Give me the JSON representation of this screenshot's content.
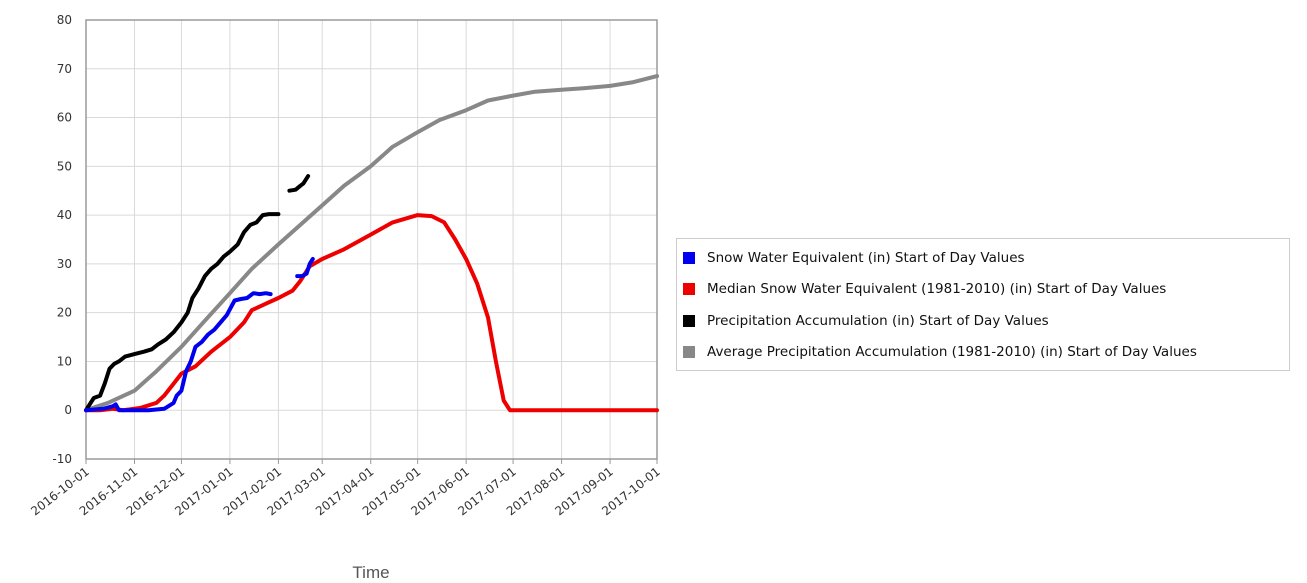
{
  "chart_data": {
    "type": "line",
    "xlabel": "Time",
    "ylabel": "",
    "ylim": [
      -10,
      80
    ],
    "xlim": [
      "2016-10-01",
      "2017-10-01"
    ],
    "y_ticks": [
      "80",
      "70",
      "60",
      "50",
      "40",
      "30",
      "20",
      "10",
      "0",
      "-10"
    ],
    "x_ticks": [
      "2016-10-01",
      "2016-11-01",
      "2016-12-01",
      "2017-01-01",
      "2017-02-01",
      "2017-03-01",
      "2017-04-01",
      "2017-05-01",
      "2017-06-01",
      "2017-07-01",
      "2017-08-01",
      "2017-09-01",
      "2017-10-01"
    ],
    "grid": true,
    "legend_position": "right",
    "series": [
      {
        "name": "Snow Water Equivalent (in) Start of Day Values",
        "color": "#0000ee",
        "segments": [
          [
            [
              "2016-10-01",
              0
            ],
            [
              "2016-10-12",
              0.3
            ],
            [
              "2016-10-18",
              0.8
            ],
            [
              "2016-10-20",
              1.2
            ],
            [
              "2016-10-22",
              0
            ],
            [
              "2016-11-10",
              0
            ],
            [
              "2016-11-20",
              0.3
            ],
            [
              "2016-11-26",
              1.5
            ],
            [
              "2016-11-28",
              3
            ],
            [
              "2016-12-01",
              4
            ],
            [
              "2016-12-04",
              8
            ],
            [
              "2016-12-07",
              10
            ],
            [
              "2016-12-10",
              13
            ],
            [
              "2016-12-14",
              14
            ],
            [
              "2016-12-18",
              15.5
            ],
            [
              "2016-12-22",
              16.5
            ],
            [
              "2016-12-26",
              18
            ],
            [
              "2016-12-30",
              19.5
            ],
            [
              "2017-01-04",
              22.5
            ],
            [
              "2017-01-08",
              22.8
            ],
            [
              "2017-01-12",
              23
            ],
            [
              "2017-01-16",
              24
            ],
            [
              "2017-01-20",
              23.8
            ],
            [
              "2017-01-24",
              24
            ],
            [
              "2017-01-27",
              23.8
            ]
          ],
          [
            [
              "2017-02-13",
              27.5
            ],
            [
              "2017-02-16",
              27.5
            ],
            [
              "2017-02-19",
              28
            ],
            [
              "2017-02-21",
              30
            ],
            [
              "2017-02-23",
              31
            ]
          ]
        ]
      },
      {
        "name": "Median Snow Water Equivalent (1981-2010) (in) Start of Day Values",
        "color": "#ee0000",
        "points": [
          [
            "2016-10-01",
            0
          ],
          [
            "2016-10-10",
            0
          ],
          [
            "2016-10-18",
            0.3
          ],
          [
            "2016-10-25",
            0
          ],
          [
            "2016-11-05",
            0.5
          ],
          [
            "2016-11-15",
            1.5
          ],
          [
            "2016-11-20",
            3
          ],
          [
            "2016-11-25",
            5
          ],
          [
            "2016-12-01",
            7.5
          ],
          [
            "2016-12-10",
            9
          ],
          [
            "2016-12-20",
            12
          ],
          [
            "2017-01-01",
            15
          ],
          [
            "2017-01-10",
            18
          ],
          [
            "2017-01-15",
            20.5
          ],
          [
            "2017-01-25",
            22
          ],
          [
            "2017-02-01",
            23
          ],
          [
            "2017-02-10",
            24.5
          ],
          [
            "2017-02-15",
            26.5
          ],
          [
            "2017-02-21",
            29.5
          ],
          [
            "2017-03-01",
            31
          ],
          [
            "2017-03-15",
            33
          ],
          [
            "2017-04-01",
            36
          ],
          [
            "2017-04-15",
            38.5
          ],
          [
            "2017-05-01",
            40
          ],
          [
            "2017-05-10",
            39.8
          ],
          [
            "2017-05-18",
            38.5
          ],
          [
            "2017-05-25",
            35
          ],
          [
            "2017-06-01",
            31
          ],
          [
            "2017-06-08",
            26
          ],
          [
            "2017-06-15",
            19
          ],
          [
            "2017-06-20",
            10
          ],
          [
            "2017-06-25",
            2
          ],
          [
            "2017-06-29",
            0
          ],
          [
            "2017-10-01",
            0
          ]
        ]
      },
      {
        "name": "Precipitation Accumulation (in) Start of Day Values",
        "color": "#000000",
        "segments": [
          [
            [
              "2016-10-01",
              0
            ],
            [
              "2016-10-03",
              1
            ],
            [
              "2016-10-06",
              2.5
            ],
            [
              "2016-10-10",
              3
            ],
            [
              "2016-10-13",
              5.5
            ],
            [
              "2016-10-16",
              8.5
            ],
            [
              "2016-10-19",
              9.5
            ],
            [
              "2016-10-22",
              10
            ],
            [
              "2016-10-26",
              11
            ],
            [
              "2016-11-01",
              11.5
            ],
            [
              "2016-11-07",
              12
            ],
            [
              "2016-11-12",
              12.5
            ],
            [
              "2016-11-16",
              13.5
            ],
            [
              "2016-11-21",
              14.5
            ],
            [
              "2016-11-26",
              16
            ],
            [
              "2016-12-01",
              18
            ],
            [
              "2016-12-05",
              20
            ],
            [
              "2016-12-08",
              23
            ],
            [
              "2016-12-12",
              25
            ],
            [
              "2016-12-16",
              27.5
            ],
            [
              "2016-12-20",
              29
            ],
            [
              "2016-12-24",
              30
            ],
            [
              "2016-12-28",
              31.5
            ],
            [
              "2017-01-01",
              32.5
            ],
            [
              "2017-01-06",
              34
            ],
            [
              "2017-01-10",
              36.5
            ],
            [
              "2017-01-14",
              38
            ],
            [
              "2017-01-18",
              38.5
            ],
            [
              "2017-01-22",
              40
            ],
            [
              "2017-01-26",
              40.2
            ],
            [
              "2017-02-01",
              40.2
            ]
          ],
          [
            [
              "2017-02-08",
              45
            ],
            [
              "2017-02-12",
              45.2
            ],
            [
              "2017-02-15",
              46
            ],
            [
              "2017-02-17",
              46.5
            ],
            [
              "2017-02-20",
              48
            ]
          ]
        ]
      },
      {
        "name": "Average Precipitation Accumulation (1981-2010) (in) Start of Day Values",
        "color": "#888888",
        "points": [
          [
            "2016-10-01",
            0
          ],
          [
            "2016-10-15",
            1.5
          ],
          [
            "2016-11-01",
            4
          ],
          [
            "2016-11-15",
            8
          ],
          [
            "2016-12-01",
            13
          ],
          [
            "2016-12-15",
            18
          ],
          [
            "2017-01-01",
            24
          ],
          [
            "2017-01-15",
            29
          ],
          [
            "2017-02-01",
            34
          ],
          [
            "2017-02-15",
            38
          ],
          [
            "2017-03-01",
            42
          ],
          [
            "2017-03-15",
            46
          ],
          [
            "2017-04-01",
            50
          ],
          [
            "2017-04-15",
            54
          ],
          [
            "2017-05-01",
            57
          ],
          [
            "2017-05-15",
            59.5
          ],
          [
            "2017-06-01",
            61.5
          ],
          [
            "2017-06-15",
            63.5
          ],
          [
            "2017-07-01",
            64.5
          ],
          [
            "2017-07-15",
            65.3
          ],
          [
            "2017-08-01",
            65.7
          ],
          [
            "2017-08-15",
            66
          ],
          [
            "2017-09-01",
            66.5
          ],
          [
            "2017-09-15",
            67.2
          ],
          [
            "2017-10-01",
            68.5
          ]
        ]
      }
    ]
  }
}
